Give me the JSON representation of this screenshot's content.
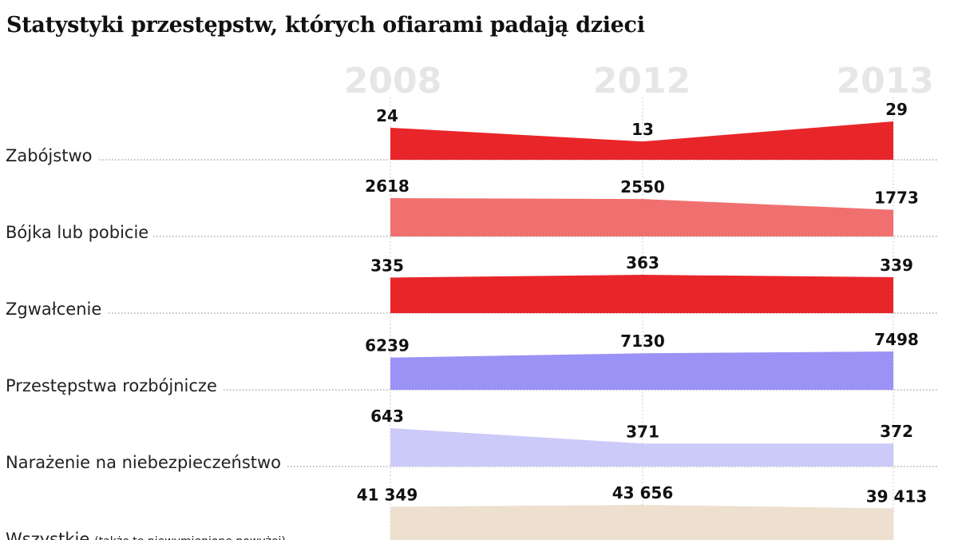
{
  "title": "Statystyki przestępstw, których ofiarami padają dzieci",
  "chart_data": {
    "type": "area",
    "title": "Statystyki przestępstw, których ofiarami padają dzieci",
    "x": [
      "2008",
      "2012",
      "2013"
    ],
    "series": [
      {
        "name": "Zabójstwo",
        "note": "",
        "values": [
          24,
          13,
          29
        ],
        "value_labels": [
          "24",
          "13",
          "29"
        ],
        "color": "#e8262a"
      },
      {
        "name": "Bójka lub pobicie",
        "note": "",
        "values": [
          2618,
          2550,
          1773
        ],
        "value_labels": [
          "2618",
          "2550",
          "1773"
        ],
        "color": "#f07070"
      },
      {
        "name": "Zgwałcenie",
        "note": "",
        "values": [
          335,
          363,
          339
        ],
        "value_labels": [
          "335",
          "363",
          "339"
        ],
        "color": "#e8262a"
      },
      {
        "name": "Przestępstwa rozbójnicze",
        "note": "",
        "values": [
          6239,
          7130,
          7498
        ],
        "value_labels": [
          "6239",
          "7130",
          "7498"
        ],
        "color": "#9a92f5"
      },
      {
        "name": "Narażenie na niebezpieczeństwo",
        "note": "",
        "values": [
          643,
          371,
          372
        ],
        "value_labels": [
          "643",
          "371",
          "372"
        ],
        "color": "#cccaf9"
      },
      {
        "name": "Wszystkie",
        "note": "(także te niewymienione powyżej)",
        "values": [
          41349,
          43656,
          39413
        ],
        "value_labels": [
          "41 349",
          "43 656",
          "39 413"
        ],
        "color": "#ede0cf"
      }
    ]
  }
}
